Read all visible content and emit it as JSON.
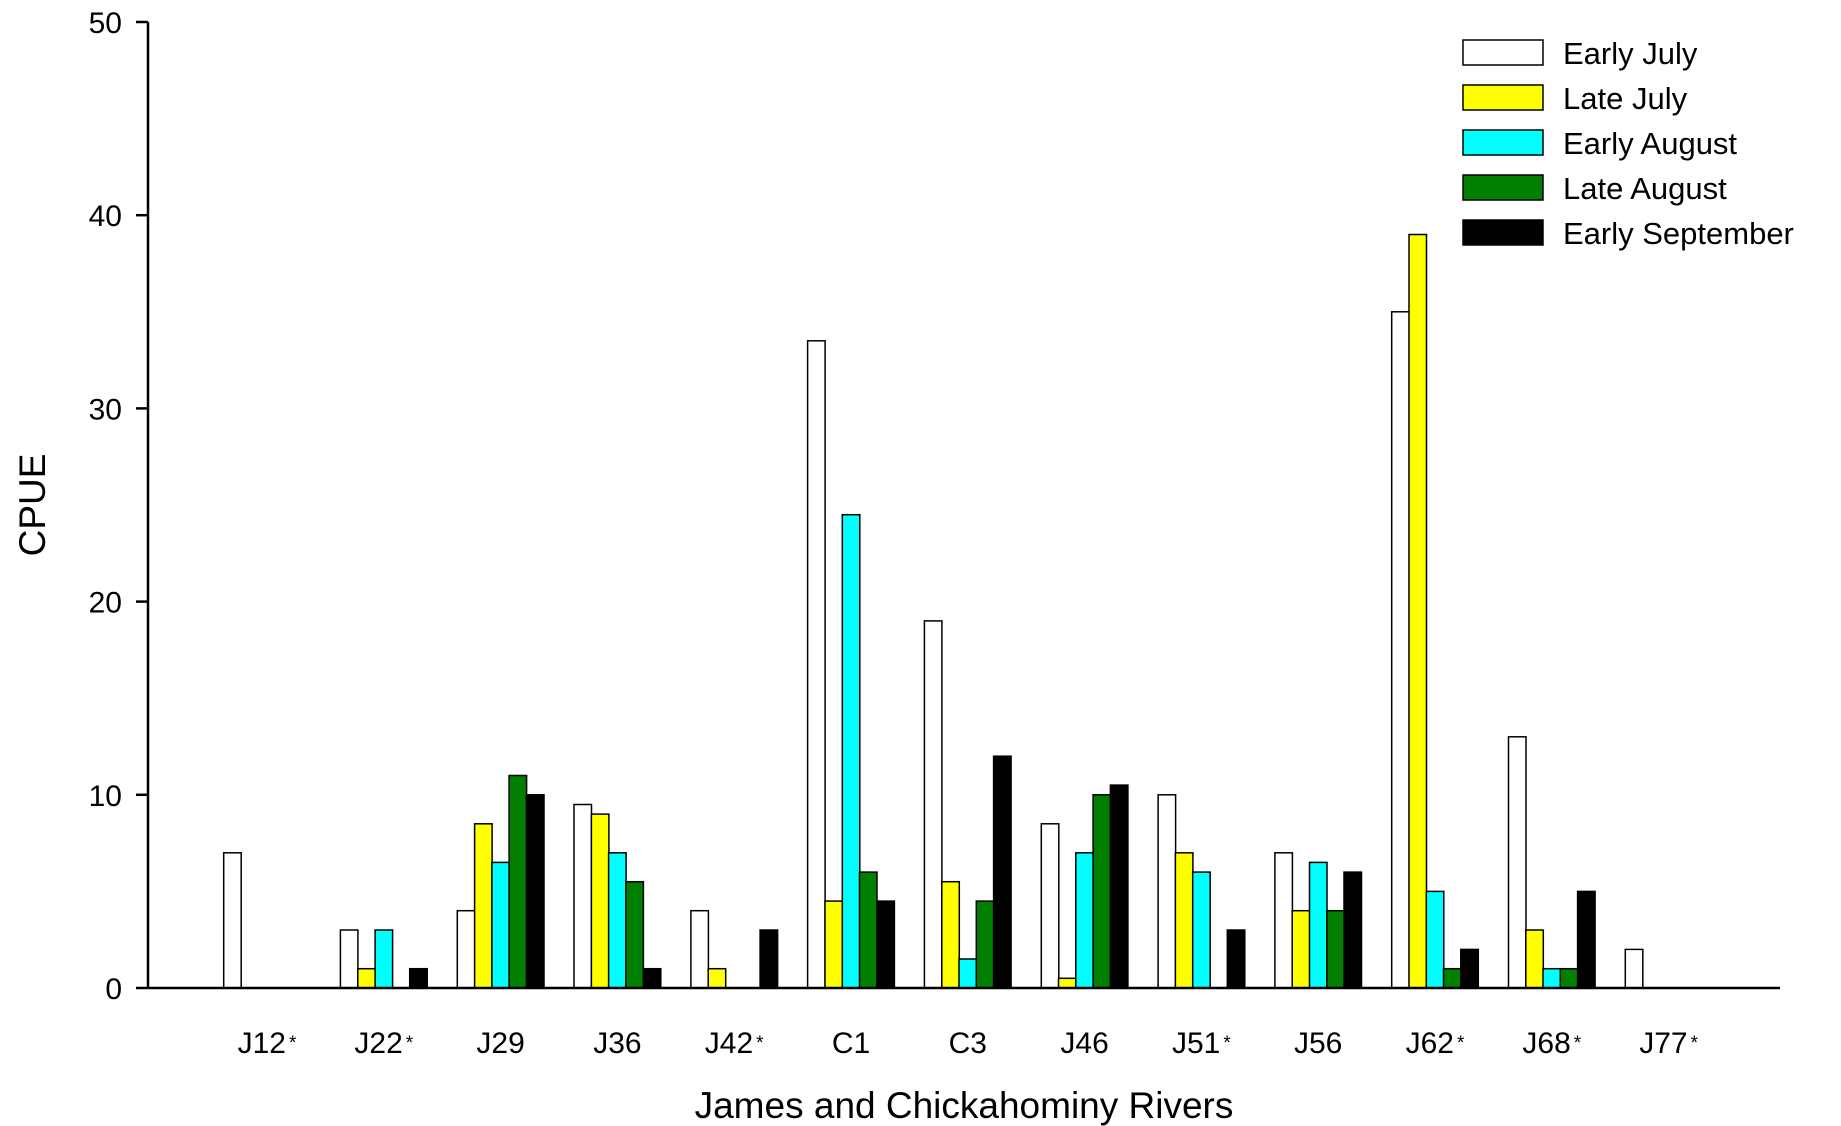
{
  "chart_data": {
    "type": "bar",
    "xlabel": "James and Chickahominy Rivers",
    "ylabel": "CPUE",
    "ylim": [
      0,
      50
    ],
    "yticks": [
      0,
      10,
      20,
      30,
      40,
      50
    ],
    "legend_position": "top-right",
    "grid": false,
    "categories": [
      "J12",
      "J22",
      "J29",
      "J36",
      "J42",
      "C1",
      "C3",
      "J46",
      "J51",
      "J56",
      "J62",
      "J68",
      "J77"
    ],
    "category_marks": [
      "*",
      "*",
      "",
      "",
      "*",
      "",
      "",
      "",
      "*",
      "",
      "*",
      "*",
      "*"
    ],
    "series": [
      {
        "name": "Early July",
        "color": "#ffffff",
        "values": [
          7,
          3,
          4,
          9.5,
          4,
          33.5,
          19,
          8.5,
          10,
          7,
          35,
          13,
          2
        ]
      },
      {
        "name": "Late July",
        "color": "#ffff00",
        "values": [
          0,
          1,
          8.5,
          9,
          1,
          4.5,
          5.5,
          0.5,
          7,
          4,
          39,
          3,
          0
        ]
      },
      {
        "name": "Early August",
        "color": "#00ffff",
        "values": [
          0,
          3,
          6.5,
          7,
          0,
          24.5,
          1.5,
          7,
          6,
          6.5,
          5,
          1,
          0
        ]
      },
      {
        "name": "Late August",
        "color": "#007f00",
        "values": [
          0,
          0,
          11,
          5.5,
          0,
          6,
          4.5,
          10,
          0,
          4,
          1,
          1,
          0
        ]
      },
      {
        "name": "Early September",
        "color": "#000000",
        "values": [
          0,
          1,
          10,
          1,
          3,
          4.5,
          12,
          10.5,
          3,
          6,
          2,
          5,
          0
        ]
      }
    ]
  }
}
